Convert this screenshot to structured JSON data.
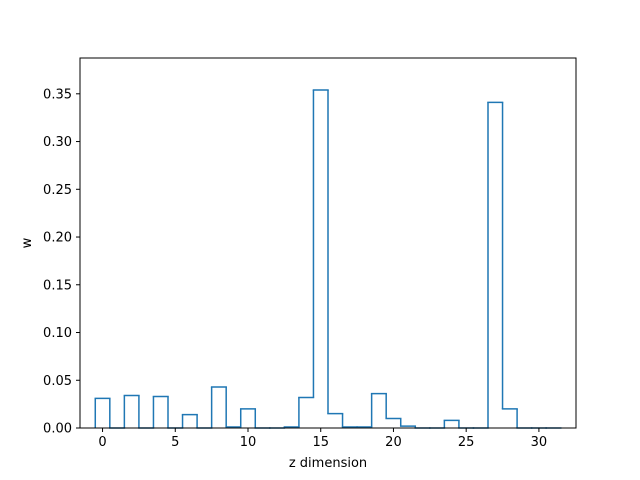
{
  "chart_data": {
    "type": "step",
    "title": "",
    "xlabel": "z dimension",
    "ylabel": "w",
    "xlim": [
      -1.55,
      32.55
    ],
    "ylim": [
      0,
      0.3875
    ],
    "x_ticks": [
      0,
      5,
      10,
      15,
      20,
      25,
      30
    ],
    "y_ticks": [
      0.0,
      0.05,
      0.1,
      0.15,
      0.2,
      0.25,
      0.3,
      0.35
    ],
    "y_tick_labels": [
      "0.00",
      "0.05",
      "0.10",
      "0.15",
      "0.20",
      "0.25",
      "0.30",
      "0.35"
    ],
    "grid": false,
    "x": [
      0,
      1,
      2,
      3,
      4,
      5,
      6,
      7,
      8,
      9,
      10,
      11,
      12,
      13,
      14,
      15,
      16,
      17,
      18,
      19,
      20,
      21,
      22,
      23,
      24,
      25,
      26,
      27,
      28,
      29,
      30,
      31
    ],
    "values": [
      0.031,
      0.0,
      0.034,
      0.0,
      0.033,
      0.0,
      0.014,
      0.0,
      0.043,
      0.001,
      0.02,
      0.0,
      0.0,
      0.001,
      0.032,
      0.354,
      0.015,
      0.001,
      0.001,
      0.036,
      0.01,
      0.002,
      0.0,
      0.0,
      0.008,
      0.0,
      0.0,
      0.341,
      0.02,
      0.0,
      0.0,
      0.0
    ],
    "color": "#1f77b4"
  }
}
